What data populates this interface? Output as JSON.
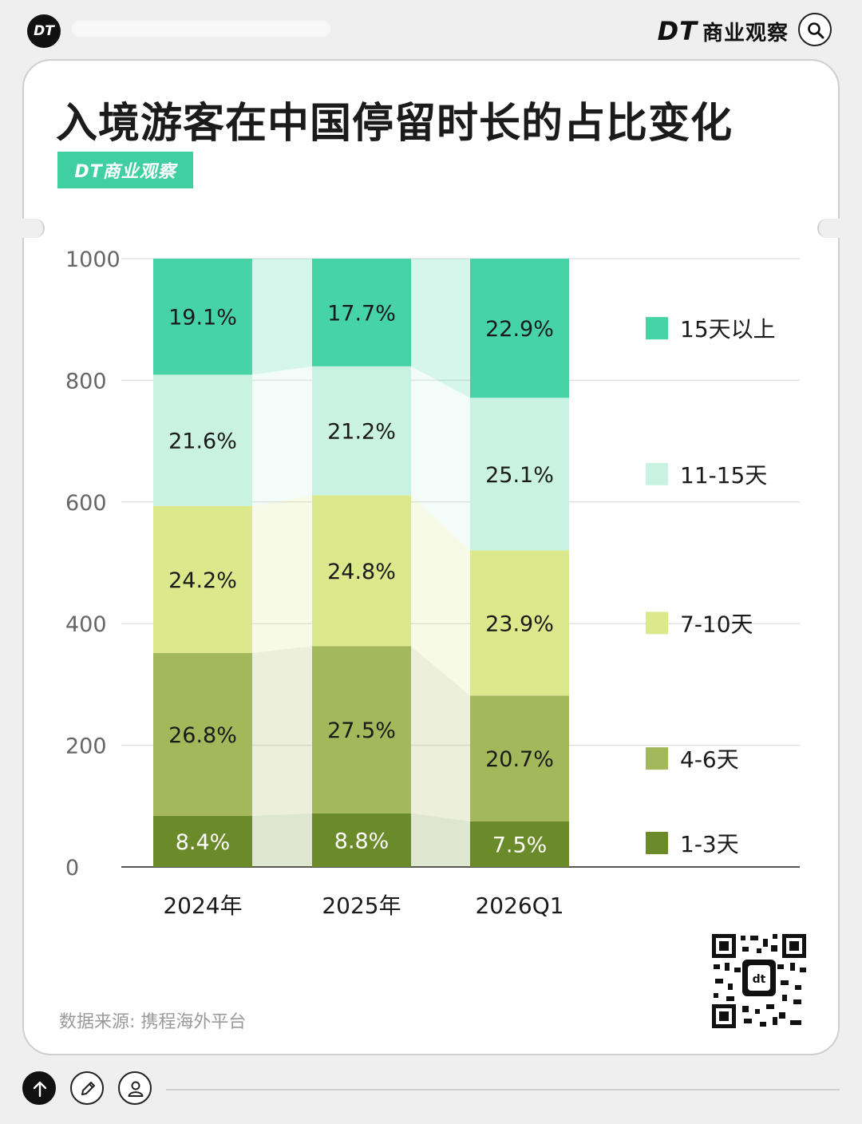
{
  "header": {
    "logo_text": "DT",
    "brand_dt": "DT",
    "brand_name": "商业观察"
  },
  "card": {
    "title": "入境游客在中国停留时长的占比变化",
    "badge": "DT商业观察",
    "source": "数据来源: 携程海外平台"
  },
  "chart_data": {
    "type": "bar",
    "stacked": true,
    "categories": [
      "2024年",
      "2025年",
      "2026Q1"
    ],
    "y_ticks": [
      "0",
      "200",
      "400",
      "600",
      "800",
      "1000"
    ],
    "ylim": [
      0,
      1000
    ],
    "grid": true,
    "legend_position": "right",
    "series": [
      {
        "name": "1-3天",
        "color": "#6b8a2a",
        "values": [
          8.4,
          8.8,
          7.5
        ],
        "labels": [
          "8.4%",
          "8.8%",
          "7.5%"
        ]
      },
      {
        "name": "4-6天",
        "color": "#a3b85a",
        "values": [
          26.8,
          27.5,
          20.7
        ],
        "labels": [
          "26.8%",
          "27.5%",
          "20.7%"
        ]
      },
      {
        "name": "7-10天",
        "color": "#dbe98c",
        "values": [
          24.2,
          24.8,
          23.9
        ],
        "labels": [
          "24.2%",
          "24.8%",
          "23.9%"
        ]
      },
      {
        "name": "11-15天",
        "color": "#c9f2e2",
        "values": [
          21.6,
          21.2,
          25.1
        ],
        "labels": [
          "21.6%",
          "21.2%",
          "25.1%"
        ]
      },
      {
        "name": "15天以上",
        "color": "#46d3a6",
        "values": [
          19.1,
          17.7,
          22.9
        ],
        "labels": [
          "19.1%",
          "17.7%",
          "22.9%"
        ]
      }
    ]
  }
}
